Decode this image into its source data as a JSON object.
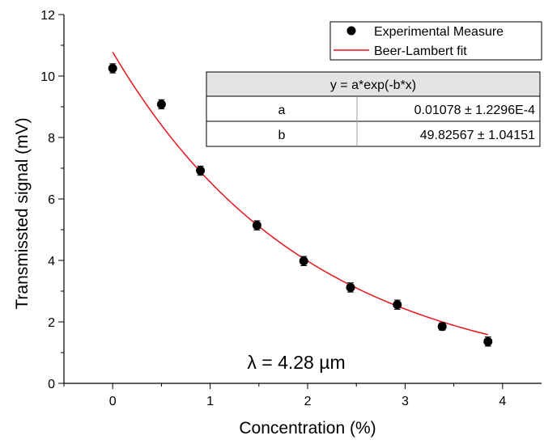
{
  "chart_data": {
    "type": "scatter",
    "xlabel": "Concentration (%)",
    "ylabel": "Transmissted signal (mV)",
    "xlim": [
      -0.5,
      4.4
    ],
    "ylim": [
      0,
      12
    ],
    "x_ticks": [
      0,
      1,
      2,
      3,
      4
    ],
    "y_ticks": [
      0,
      2,
      4,
      6,
      8,
      10,
      12
    ],
    "grid": false,
    "legend_position": "top-right",
    "series": [
      {
        "name": "Experimental Measure",
        "type": "scatter",
        "color": "#000000",
        "x": [
          0.0,
          0.5,
          0.9,
          1.48,
          1.96,
          2.44,
          2.92,
          3.38,
          3.85
        ],
        "y": [
          10.25,
          9.08,
          6.92,
          5.14,
          3.98,
          3.12,
          2.56,
          1.85,
          1.36
        ],
        "err": [
          0.15,
          0.15,
          0.15,
          0.15,
          0.15,
          0.15,
          0.15,
          0.12,
          0.15
        ]
      },
      {
        "name": "Beer-Lambert fit",
        "type": "line",
        "color": "#e8141a",
        "x_range": [
          0,
          3.85
        ],
        "y_intercept": 10.78,
        "decay_per_percent": 0.4983
      }
    ],
    "fit_table": {
      "equation": "y = a*exp(-b*x)",
      "rows": [
        {
          "param": "a",
          "value": "0.01078 ± 1.2296E-4"
        },
        {
          "param": "b",
          "value": "49.82567 ± 1.04151"
        }
      ]
    },
    "annotation": "λ = 4.28 µm"
  }
}
